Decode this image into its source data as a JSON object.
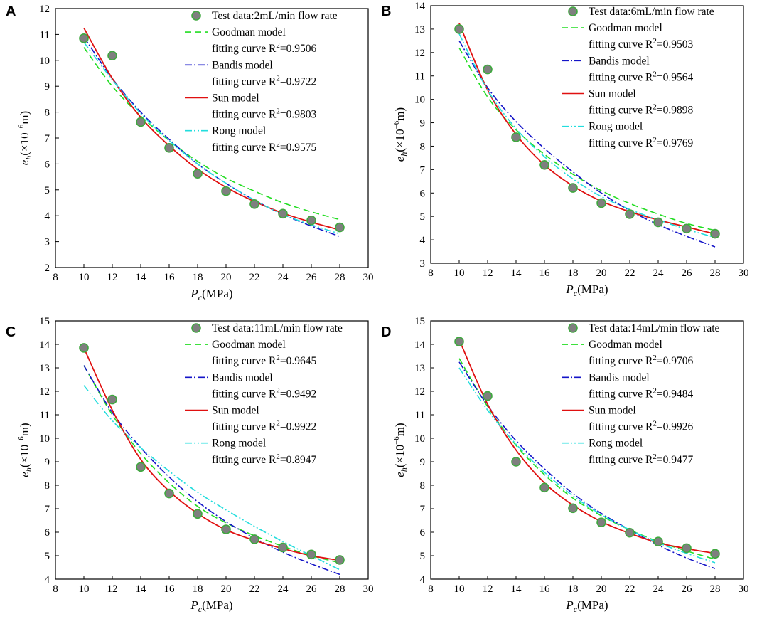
{
  "figure": {
    "xlabel_main": "P",
    "xlabel_sub": "c",
    "xlabel_unit": "(MPa)",
    "ylabel_main": "e",
    "ylabel_sub": "h",
    "ylabel_unit": "(×10",
    "ylabel_exp": "−6",
    "ylabel_tail": "m)",
    "r2_prefix": "fitting curve R",
    "r2_sup": "2",
    "colors": {
      "marker": "#7f7f7f",
      "marker_edge": "#3fa83f",
      "goodman": "#22dd22",
      "bandis": "#1515c8",
      "sun": "#e01010",
      "rong": "#22dddd",
      "axis": "#000000"
    }
  },
  "chart_data": [
    {
      "panel": "A",
      "type": "line",
      "xlim": [
        8,
        30
      ],
      "ylim": [
        2,
        12
      ],
      "xticks": [
        8,
        10,
        12,
        14,
        16,
        18,
        20,
        22,
        24,
        26,
        28,
        30
      ],
      "yticks": [
        2,
        3,
        4,
        5,
        6,
        7,
        8,
        9,
        10,
        11,
        12
      ],
      "test_label": "Test data:2mL/min flow rate",
      "test": {
        "x": [
          10,
          12,
          14,
          16,
          18,
          20,
          22,
          24,
          26,
          28
        ],
        "y": [
          10.85,
          10.18,
          7.62,
          6.62,
          5.62,
          4.95,
          4.45,
          4.08,
          3.82,
          3.55
        ]
      },
      "models": [
        {
          "name": "Goodman model",
          "r2": "=0.9506",
          "style": "goodman",
          "x": [
            10,
            12,
            14,
            16,
            18,
            20,
            22,
            24,
            26,
            28
          ],
          "y": [
            10.5,
            9.0,
            7.85,
            6.9,
            6.1,
            5.45,
            4.95,
            4.5,
            4.15,
            3.85
          ]
        },
        {
          "name": "Bandis model",
          "r2": "=0.9722",
          "style": "bandis",
          "x": [
            10,
            12,
            14,
            16,
            18,
            20,
            22,
            24,
            26,
            28
          ],
          "y": [
            10.9,
            9.3,
            8.0,
            6.95,
            6.0,
            5.25,
            4.6,
            4.05,
            3.6,
            3.2
          ]
        },
        {
          "name": "Sun model",
          "r2": "=0.9803",
          "style": "sun",
          "x": [
            10,
            12,
            14,
            16,
            18,
            20,
            22,
            24,
            26,
            28
          ],
          "y": [
            11.25,
            9.3,
            7.8,
            6.7,
            5.8,
            5.1,
            4.55,
            4.1,
            3.75,
            3.45
          ]
        },
        {
          "name": "Rong model",
          "r2": "=0.9575",
          "style": "rong",
          "x": [
            10,
            12,
            14,
            16,
            18,
            20,
            22,
            24,
            26,
            28
          ],
          "y": [
            10.7,
            9.25,
            7.95,
            6.9,
            6.0,
            5.25,
            4.6,
            4.05,
            3.65,
            3.3
          ]
        }
      ]
    },
    {
      "panel": "B",
      "type": "line",
      "xlim": [
        8,
        30
      ],
      "ylim": [
        3,
        14
      ],
      "xticks": [
        8,
        10,
        12,
        14,
        16,
        18,
        20,
        22,
        24,
        26,
        28,
        30
      ],
      "yticks": [
        3,
        4,
        5,
        6,
        7,
        8,
        9,
        10,
        11,
        12,
        13,
        14
      ],
      "test_label": "Test data:6mL/min flow rate",
      "test": {
        "x": [
          10,
          12,
          14,
          16,
          18,
          20,
          22,
          24,
          26,
          28
        ],
        "y": [
          13.0,
          11.28,
          8.38,
          7.2,
          6.22,
          5.57,
          5.1,
          4.75,
          4.48,
          4.26
        ]
      },
      "models": [
        {
          "name": "Goodman model",
          "r2": "=0.9503",
          "style": "goodman",
          "x": [
            10,
            12,
            14,
            16,
            18,
            20,
            22,
            24,
            26,
            28
          ],
          "y": [
            12.2,
            10.1,
            8.7,
            7.65,
            6.8,
            6.1,
            5.55,
            5.1,
            4.7,
            4.4
          ]
        },
        {
          "name": "Bandis model",
          "r2": "=0.9564",
          "style": "bandis",
          "x": [
            10,
            12,
            14,
            16,
            18,
            20,
            22,
            24,
            26,
            28
          ],
          "y": [
            12.5,
            10.5,
            9.05,
            7.9,
            6.9,
            6.0,
            5.25,
            4.65,
            4.15,
            3.7
          ]
        },
        {
          "name": "Sun model",
          "r2": "=0.9898",
          "style": "sun",
          "x": [
            10,
            12,
            14,
            16,
            18,
            20,
            22,
            24,
            26,
            28
          ],
          "y": [
            13.25,
            10.4,
            8.5,
            7.2,
            6.3,
            5.65,
            5.2,
            4.85,
            4.55,
            4.25
          ]
        },
        {
          "name": "Rong model",
          "r2": "=0.9769",
          "style": "rong",
          "x": [
            10,
            12,
            14,
            16,
            18,
            20,
            22,
            24,
            26,
            28
          ],
          "y": [
            12.8,
            10.4,
            8.75,
            7.55,
            6.6,
            5.85,
            5.3,
            4.85,
            4.45,
            4.1
          ]
        }
      ]
    },
    {
      "panel": "C",
      "type": "line",
      "xlim": [
        8,
        30
      ],
      "ylim": [
        4,
        15
      ],
      "xticks": [
        8,
        10,
        12,
        14,
        16,
        18,
        20,
        22,
        24,
        26,
        28,
        30
      ],
      "yticks": [
        4,
        5,
        6,
        7,
        8,
        9,
        10,
        11,
        12,
        13,
        14,
        15
      ],
      "test_label": "Test data:11mL/min flow rate",
      "test": {
        "x": [
          10,
          12,
          14,
          16,
          18,
          20,
          22,
          24,
          26,
          28
        ],
        "y": [
          13.85,
          11.65,
          8.78,
          7.65,
          6.78,
          6.12,
          5.7,
          5.35,
          5.05,
          4.82
        ]
      },
      "models": [
        {
          "name": "Goodman model",
          "r2": "=0.9645",
          "style": "goodman",
          "x": [
            10,
            12,
            14,
            16,
            18,
            20,
            22,
            24,
            26,
            28
          ],
          "y": [
            13.1,
            11.0,
            9.35,
            8.1,
            7.1,
            6.4,
            5.85,
            5.4,
            5.0,
            4.7
          ]
        },
        {
          "name": "Bandis model",
          "r2": "=0.9492",
          "style": "bandis",
          "x": [
            10,
            12,
            14,
            16,
            18,
            20,
            22,
            24,
            26,
            28
          ],
          "y": [
            13.1,
            11.1,
            9.6,
            8.35,
            7.3,
            6.45,
            5.75,
            5.15,
            4.65,
            4.2
          ]
        },
        {
          "name": "Sun model",
          "r2": "=0.9922",
          "style": "sun",
          "x": [
            10,
            12,
            14,
            16,
            18,
            20,
            22,
            24,
            26,
            28
          ],
          "y": [
            13.85,
            11.2,
            9.1,
            7.75,
            6.8,
            6.1,
            5.65,
            5.3,
            5.0,
            4.8
          ]
        },
        {
          "name": "Rong model",
          "r2": "=0.8947",
          "style": "rong",
          "x": [
            10,
            12,
            14,
            16,
            18,
            20,
            22,
            24,
            26,
            28
          ],
          "y": [
            12.25,
            10.75,
            9.6,
            8.6,
            7.7,
            6.95,
            6.25,
            5.6,
            5.0,
            4.4
          ]
        }
      ]
    },
    {
      "panel": "D",
      "type": "line",
      "xlim": [
        8,
        30
      ],
      "ylim": [
        4,
        15
      ],
      "xticks": [
        8,
        10,
        12,
        14,
        16,
        18,
        20,
        22,
        24,
        26,
        28,
        30
      ],
      "yticks": [
        4,
        5,
        6,
        7,
        8,
        9,
        10,
        11,
        12,
        13,
        14,
        15
      ],
      "test_label": "Test data:14mL/min flow rate",
      "test": {
        "x": [
          10,
          12,
          14,
          16,
          18,
          20,
          22,
          24,
          26,
          28
        ],
        "y": [
          14.12,
          11.8,
          9.0,
          7.9,
          7.02,
          6.42,
          5.98,
          5.6,
          5.32,
          5.08
        ]
      },
      "models": [
        {
          "name": "Goodman model",
          "r2": "=0.9706",
          "style": "goodman",
          "x": [
            10,
            12,
            14,
            16,
            18,
            20,
            22,
            24,
            26,
            28
          ],
          "y": [
            13.4,
            11.35,
            9.7,
            8.45,
            7.45,
            6.7,
            6.1,
            5.6,
            5.2,
            4.85
          ]
        },
        {
          "name": "Bandis model",
          "r2": "=0.9484",
          "style": "bandis",
          "x": [
            10,
            12,
            14,
            16,
            18,
            20,
            22,
            24,
            26,
            28
          ],
          "y": [
            13.25,
            11.4,
            9.9,
            8.7,
            7.65,
            6.8,
            6.1,
            5.45,
            4.9,
            4.45
          ]
        },
        {
          "name": "Sun model",
          "r2": "=0.9926",
          "style": "sun",
          "x": [
            10,
            12,
            14,
            16,
            18,
            20,
            22,
            24,
            26,
            28
          ],
          "y": [
            14.2,
            11.45,
            9.5,
            8.1,
            7.15,
            6.45,
            5.95,
            5.55,
            5.3,
            5.1
          ]
        },
        {
          "name": "Rong model",
          "r2": "=0.9477",
          "style": "rong",
          "x": [
            10,
            12,
            14,
            16,
            18,
            20,
            22,
            24,
            26,
            28
          ],
          "y": [
            13.0,
            11.2,
            9.75,
            8.55,
            7.55,
            6.75,
            6.1,
            5.55,
            5.1,
            4.7
          ]
        }
      ]
    }
  ]
}
